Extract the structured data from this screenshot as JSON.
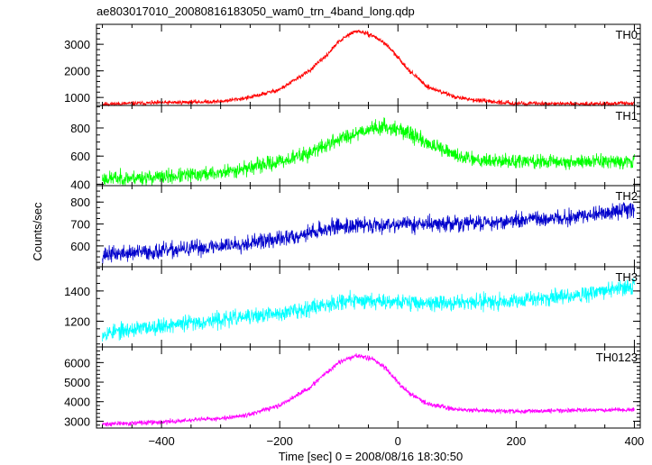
{
  "title": "ae803017010_20080816183050_wam0_trn_4band_long.qdp",
  "xlabel": "Time [sec] 0 = 2008/08/16 18:30:50",
  "ylabel": "Counts/sec",
  "chart_data": {
    "type": "line",
    "title": "ae803017010_20080816183050_wam0_trn_4band_long.qdp",
    "xlabel": "Time [sec] 0 = 2008/08/16 18:30:50",
    "ylabel": "Counts/sec",
    "xlim": [
      -510,
      410
    ],
    "xticks": [
      -400,
      -200,
      0,
      200,
      400
    ],
    "grid": false,
    "panels": [
      {
        "name": "TH0",
        "color": "#ff0000",
        "ylim": [
          700,
          3750
        ],
        "yticks": [
          1000,
          2000,
          3000
        ],
        "x": [
          -500,
          -400,
          -300,
          -250,
          -200,
          -150,
          -120,
          -100,
          -80,
          -70,
          -60,
          -40,
          -20,
          0,
          20,
          50,
          100,
          150,
          200,
          300,
          400
        ],
        "y": [
          750,
          800,
          850,
          1000,
          1300,
          2000,
          2600,
          3100,
          3400,
          3500,
          3450,
          3300,
          3000,
          2500,
          2000,
          1400,
          1000,
          850,
          780,
          760,
          780
        ],
        "noise": 60,
        "seed": 11
      },
      {
        "name": "TH1",
        "color": "#00ff00",
        "ylim": [
          390,
          960
        ],
        "yticks": [
          400,
          600,
          800
        ],
        "x": [
          -500,
          -400,
          -300,
          -250,
          -200,
          -150,
          -100,
          -60,
          -40,
          -20,
          0,
          20,
          60,
          100,
          150,
          200,
          300,
          400
        ],
        "y": [
          440,
          450,
          480,
          520,
          560,
          620,
          720,
          780,
          800,
          810,
          790,
          760,
          670,
          600,
          570,
          560,
          560,
          570
        ],
        "noise": 40,
        "seed": 23
      },
      {
        "name": "TH2",
        "color": "#0000cc",
        "ylim": [
          505,
          875
        ],
        "yticks": [
          600,
          700,
          800
        ],
        "x": [
          -500,
          -400,
          -300,
          -200,
          -150,
          -100,
          -50,
          0,
          50,
          100,
          200,
          300,
          400
        ],
        "y": [
          560,
          575,
          600,
          630,
          660,
          690,
          695,
          700,
          700,
          700,
          715,
          730,
          770
        ],
        "noise": 28,
        "seed": 37
      },
      {
        "name": "TH3",
        "color": "#00ffff",
        "ylim": [
          1030,
          1560
        ],
        "yticks": [
          1200,
          1400
        ],
        "x": [
          -500,
          -400,
          -300,
          -200,
          -150,
          -100,
          -50,
          0,
          50,
          100,
          200,
          300,
          400
        ],
        "y": [
          1120,
          1170,
          1210,
          1250,
          1290,
          1330,
          1340,
          1330,
          1320,
          1320,
          1340,
          1370,
          1430
        ],
        "noise": 40,
        "seed": 53
      },
      {
        "name": "TH0123",
        "color": "#ff00ff",
        "ylim": [
          2650,
          6800
        ],
        "yticks": [
          3000,
          4000,
          5000,
          6000
        ],
        "x": [
          -500,
          -400,
          -300,
          -250,
          -200,
          -150,
          -120,
          -100,
          -80,
          -70,
          -60,
          -40,
          -20,
          0,
          20,
          50,
          100,
          150,
          200,
          300,
          400
        ],
        "y": [
          2850,
          2950,
          3150,
          3350,
          3800,
          4700,
          5500,
          6000,
          6250,
          6350,
          6300,
          6150,
          5700,
          5000,
          4400,
          3900,
          3600,
          3550,
          3500,
          3550,
          3600
        ],
        "noise": 90,
        "seed": 71
      }
    ]
  }
}
